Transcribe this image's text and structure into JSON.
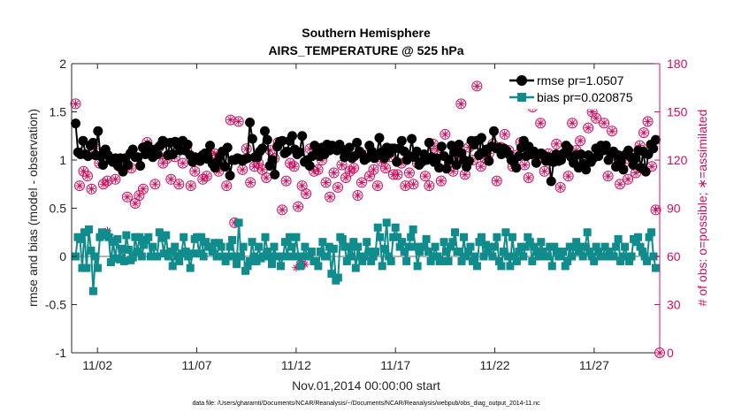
{
  "chart_data": {
    "type": "line",
    "title": "Southern Hemisphere",
    "subtitle": "AIRS_TEMPERATURE @ 525 hPa",
    "xlabel": "Nov.01,2014 00:00:00 start",
    "ylabel_left": "rmse and bias (model - observation)",
    "ylabel_right": "# of obs: o=possible; ∗=assimilated",
    "footnote": "data file: /Users/gharamti/Documents/NCAR/Reanalysis/~/Documents/NCAR/Reanalysis/webpub/obs_diag_output_2014-11.nc",
    "xlim": [
      0.7,
      30.3
    ],
    "x_ticks": [
      {
        "x": 2,
        "label": "11/02"
      },
      {
        "x": 7,
        "label": "11/07"
      },
      {
        "x": 12,
        "label": "11/12"
      },
      {
        "x": 17,
        "label": "11/17"
      },
      {
        "x": 22,
        "label": "11/22"
      },
      {
        "x": 27,
        "label": "11/27"
      }
    ],
    "ylim_left": [
      -1,
      2
    ],
    "yticks_left": [
      "-1",
      "-0.5",
      "0",
      "0.5",
      "1",
      "1.5",
      "2"
    ],
    "ylim_right": [
      0,
      180
    ],
    "yticks_right": [
      "0",
      "30",
      "60",
      "90",
      "120",
      "150",
      "180"
    ],
    "legend_position": "top-right",
    "colors": {
      "rmse": "#000000",
      "bias": "#108c8c",
      "obs": "#cc1060",
      "zero_line": "#b4b4b4",
      "axis": "#262626"
    },
    "series": [
      {
        "name": "rmse pr=1.0507",
        "key": "rmse",
        "axis": "left",
        "values": [
          1.38,
          1.08,
          1.06,
          1.2,
          1.06,
          1.04,
          1.15,
          1.18,
          1.05,
          1.3,
          1.04,
          0.95,
          1.11,
          1.05,
          1.0,
          0.98,
          1.02,
          0.94,
          1.02,
          0.88,
          1.02,
          0.95,
          1.07,
          1.11,
          1.03,
          1.03,
          0.94,
          1.13,
          1.06,
          1.15,
          1.1,
          1.03,
          1.11,
          1.06,
          1.15,
          1.2,
          1.18,
          1.05,
          1.18,
          1.06,
          1.19,
          1.16,
          1.1,
          1.2,
          1.1,
          1.16,
          1.05,
          0.98,
          1.03,
          1.02,
          0.99,
          1.05,
          1.07,
          1.01,
          1.15,
          0.96,
          0.92,
          0.98,
          1.04,
          1.09,
          0.93,
          1.13,
          0.84,
          1.0,
          1.0,
          1.02,
          1.01,
          0.99,
          1.01,
          1.02,
          1.39,
          1.22,
          1.03,
          1.03,
          1.09,
          1.12,
          1.3,
          1.21,
          0.94,
          1.0,
          0.85,
          1.14,
          1.19,
          1.2,
          1.07,
          1.09,
          1.2,
          1.25,
          1.11,
          1.06,
          1.08,
          1.25,
          0.98,
          1.0,
          0.94,
          1.04,
          1.15,
          1.11,
          1.04,
          1.13,
          1.06,
          1.16,
          1.1,
          1.15,
          1.14,
          1.1,
          1.16,
          1.11,
          1.03,
          1.08,
          1.13,
          1.02,
          1.04,
          1.18,
          1.09,
          1.06,
          1.0,
          1.02,
          1.15,
          1.09,
          1.02,
          1.05,
          1.23,
          1.08,
          1.02,
          1.13,
          1.07,
          1.12,
          1.12,
          0.98,
          1.12,
          1.2,
          1.09,
          1.0,
          1.04,
          1.22,
          1.03,
          1.09,
          0.95,
          0.98,
          1.06,
          1.0,
          1.18,
          1.03,
          0.98,
          1.02,
          0.92,
          1.14,
          1.04,
          0.91,
          1.0,
          1.15,
          1.08,
          0.95,
          1.16,
          1.07,
          1.0,
          0.93,
          0.99,
          1.2,
          1.16,
          1.2,
          1.05,
          1.23,
          1.08,
          1.11,
          0.99,
          1.14,
          1.3,
          1.12,
          1.13,
          1.06,
          1.12,
          1.1,
          1.06,
          1.0,
          0.98,
          0.92,
          1.04,
          1.13,
          1.2,
          1.04,
          1.14,
          1.06,
          1.09,
          0.97,
          1.06,
          1.07,
          1.05,
          0.99,
          1.03,
          0.78,
          0.98,
          1.06,
          0.99,
          1.0,
          1.07,
          1.15,
          1.12,
          1.03,
          0.97,
          1.05,
          0.92,
          1.06,
          0.96,
          0.9,
          1.05,
          0.98,
          1.02,
          1.12,
          1.04,
          1.15,
          1.1,
          1.15,
          1.0,
          1.06,
          1.09,
          0.93,
          1.05,
          0.98,
          0.9,
          1.06,
          1.1,
          1.03,
          0.95,
          1.02,
          1.1,
          0.92,
          1.09,
          0.88,
          1.06,
          1.16,
          1.12,
          1.21
        ]
      },
      {
        "name": "bias pr=0.020875",
        "key": "bias",
        "axis": "left",
        "values": [
          0.0,
          0.2,
          0.18,
          -0.12,
          0.25,
          -0.12,
          0.28,
          0.06,
          -0.36,
          0.0,
          -0.12,
          0.2,
          0.25,
          0.22,
          0.24,
          0.2,
          -0.06,
          0.15,
          -0.02,
          0.18,
          -0.03,
          0.08,
          -0.05,
          0.22,
          0.07,
          -0.04,
          -0.01,
          0.2,
          0.05,
          0.2,
          0.0,
          0.12,
          0.17,
          0.2,
          0.0,
          0.1,
          0.0,
          0.0,
          0.25,
          0.19,
          0.03,
          0.22,
          0.0,
          0.05,
          -0.1,
          0.1,
          0.0,
          -0.05,
          0.03,
          0.2,
          0.05,
          0.0,
          -0.12,
          0.03,
          0.18,
          0.2,
          0.03,
          0.2,
          0.0,
          0.15,
          0.1,
          0.1,
          0.05,
          0.14,
          0.0,
          0.14,
          0.1,
          0.0,
          -0.05,
          0.0,
          0.1,
          0.17,
          0.0,
          -0.08,
          0.35,
          0.0,
          0.1,
          -0.15,
          -0.1,
          -0.05,
          0.15,
          0.0,
          -0.05,
          0.1,
          -0.02,
          0.0,
          0.2,
          0.05,
          0.0,
          -0.08,
          0.1,
          0.0,
          0.0,
          -0.1,
          0.0,
          0.15,
          0.0,
          0.2,
          0.1,
          0.0,
          0.2,
          0.0,
          -0.1,
          0.0,
          0.1,
          0.0,
          0.0,
          0.05,
          -0.05,
          -0.05,
          -0.1,
          0.05,
          0.15,
          0.0,
          0.0,
          0.1,
          -0.18,
          0.08,
          -0.25,
          -0.22,
          0.2,
          0.18,
          0.1,
          -0.05,
          0.1,
          0.0,
          0.15,
          -0.12,
          0.1,
          0.0,
          -0.05,
          0.0,
          0.15,
          0.05,
          -0.05,
          0.0,
          0.05,
          0.3,
          0.2,
          -0.1,
          0.08,
          0.35,
          0.0,
          -0.05,
          0.2,
          0.3,
          0.2,
          0.1,
          0.15,
          0.05,
          -0.05,
          0.1,
          0.2,
          0.28,
          0.1,
          -0.1,
          0.05,
          0.1,
          0.1,
          0.18,
          0.05,
          -0.05,
          0.0,
          0.1,
          0.0,
          -0.05,
          -0.05,
          0.15,
          0.05,
          -0.05,
          0.1,
          0.15,
          0.25,
          0.05,
          0.05,
          -0.05,
          0.2,
          0.0,
          0.05,
          0.1,
          -0.05,
          0.0,
          -0.1,
          0.15,
          0.2,
          0.0,
          0.12,
          0.05,
          0.1,
          0.0,
          0.1,
          0.2,
          -0.05,
          -0.1,
          0.05,
          0.25,
          0.0,
          -0.1,
          0.2,
          0.0,
          -0.05,
          0.05,
          0.1,
          0.0,
          0.1,
          0.2,
          0.15,
          -0.05,
          0.1,
          0.05,
          0.0,
          0.15,
          0.05,
          0.0,
          0.0,
          0.1,
          -0.1,
          0.1,
          0.05,
          0.0,
          0.0,
          0.05,
          -0.1,
          -0.05,
          0.1,
          0.0,
          0.1,
          0.15,
          0.05,
          0.1,
          0.0,
          0.1,
          0.25,
          0.05,
          0.0,
          -0.05,
          0.1,
          0.05,
          0.0,
          0.0,
          0.1,
          0.0,
          0.05,
          0.0,
          0.0,
          0.1,
          0.18,
          -0.05,
          0.0,
          0.1,
          0.0,
          -0.05,
          0.0,
          0.18,
          0.15,
          0.2,
          0.1,
          0.05,
          0.0,
          -0.05,
          0.2,
          0.25,
          0.0,
          -0.12
        ]
      },
      {
        "name": "# of obs: o=possible; ∗=assimilated",
        "key": "obs",
        "axis": "right",
        "points": [
          [
            0.9,
            155
          ],
          [
            1.1,
            104
          ],
          [
            1.3,
            113
          ],
          [
            1.5,
            110
          ],
          [
            1.7,
            102
          ],
          [
            1.9,
            127
          ],
          [
            2.1,
            118
          ],
          [
            2.3,
            105
          ],
          [
            2.5,
            107
          ],
          [
            2.7,
            120
          ],
          [
            2.9,
            108
          ],
          [
            3.1,
            116
          ],
          [
            3.3,
            115
          ],
          [
            3.5,
            97
          ],
          [
            3.7,
            115
          ],
          [
            3.9,
            93
          ],
          [
            4.1,
            98
          ],
          [
            4.3,
            102
          ],
          [
            4.5,
            131
          ],
          [
            4.7,
            124
          ],
          [
            4.9,
            105
          ],
          [
            5.1,
            128
          ],
          [
            5.3,
            118
          ],
          [
            5.5,
            121
          ],
          [
            5.7,
            108
          ],
          [
            5.9,
            122
          ],
          [
            6.1,
            105
          ],
          [
            6.3,
            118
          ],
          [
            6.5,
            126
          ],
          [
            6.7,
            104
          ],
          [
            6.9,
            113
          ],
          [
            7.1,
            121
          ],
          [
            7.3,
            108
          ],
          [
            7.5,
            110
          ],
          [
            7.7,
            123
          ],
          [
            7.9,
            124
          ],
          [
            8.1,
            113
          ],
          [
            8.3,
            117
          ],
          [
            8.5,
            104
          ],
          [
            8.7,
            145
          ],
          [
            8.9,
            81
          ],
          [
            9.1,
            144
          ],
          [
            9.3,
            114
          ],
          [
            9.5,
            127
          ],
          [
            9.7,
            106
          ],
          [
            9.9,
            116
          ],
          [
            10.1,
            118
          ],
          [
            10.3,
            114
          ],
          [
            10.5,
            109
          ],
          [
            10.7,
            126
          ],
          [
            10.9,
            121
          ],
          [
            11.1,
            131
          ],
          [
            11.3,
            89
          ],
          [
            11.5,
            107
          ],
          [
            11.7,
            118
          ],
          [
            11.9,
            116
          ],
          [
            12.1,
            91
          ],
          [
            12.3,
            104
          ],
          [
            12.5,
            99
          ],
          [
            12.7,
            127
          ],
          [
            12.9,
            113
          ],
          [
            13.1,
            114
          ],
          [
            13.3,
            120
          ],
          [
            13.5,
            106
          ],
          [
            13.7,
            97
          ],
          [
            13.9,
            112
          ],
          [
            14.1,
            103
          ],
          [
            14.3,
            117
          ],
          [
            14.5,
            109
          ],
          [
            14.7,
            113
          ],
          [
            14.9,
            115
          ],
          [
            15.1,
            98
          ],
          [
            15.3,
            106
          ],
          [
            15.5,
            123
          ],
          [
            15.7,
            110
          ],
          [
            15.9,
            114
          ],
          [
            16.1,
            104
          ],
          [
            16.3,
            119
          ],
          [
            16.5,
            115
          ],
          [
            16.7,
            122
          ],
          [
            16.9,
            111
          ],
          [
            17.1,
            111
          ],
          [
            17.3,
            118
          ],
          [
            17.5,
            104
          ],
          [
            17.7,
            112
          ],
          [
            17.9,
            105
          ],
          [
            18.1,
            118
          ],
          [
            18.3,
            121
          ],
          [
            18.5,
            110
          ],
          [
            18.7,
            104
          ],
          [
            18.9,
            130
          ],
          [
            19.1,
            126
          ],
          [
            19.3,
            107
          ],
          [
            19.5,
            136
          ],
          [
            19.7,
            118
          ],
          [
            19.9,
            113
          ],
          [
            20.1,
            121
          ],
          [
            20.3,
            155
          ],
          [
            20.5,
            111
          ],
          [
            20.7,
            128
          ],
          [
            20.9,
            120
          ],
          [
            21.1,
            166
          ],
          [
            21.3,
            116
          ],
          [
            21.5,
            121
          ],
          [
            21.7,
            124
          ],
          [
            21.9,
            130
          ],
          [
            22.1,
            107
          ],
          [
            22.3,
            128
          ],
          [
            22.5,
            136
          ],
          [
            22.7,
            126
          ],
          [
            22.9,
            116
          ],
          [
            23.1,
            123
          ],
          [
            23.3,
            131
          ],
          [
            23.5,
            117
          ],
          [
            23.7,
            109
          ],
          [
            23.9,
            153
          ],
          [
            24.1,
            119
          ],
          [
            24.3,
            143
          ],
          [
            24.5,
            113
          ],
          [
            24.7,
            124
          ],
          [
            24.9,
            120
          ],
          [
            25.1,
            130
          ],
          [
            25.3,
            103
          ],
          [
            25.5,
            124
          ],
          [
            25.7,
            110
          ],
          [
            25.9,
            143
          ],
          [
            26.1,
            126
          ],
          [
            26.3,
            132
          ],
          [
            26.5,
            119
          ],
          [
            26.7,
            140
          ],
          [
            26.9,
            150
          ],
          [
            27.1,
            146
          ],
          [
            27.3,
            126
          ],
          [
            27.5,
            143
          ],
          [
            27.7,
            110
          ],
          [
            27.9,
            138
          ],
          [
            28.1,
            120
          ],
          [
            28.3,
            105
          ],
          [
            28.5,
            118
          ],
          [
            28.7,
            108
          ],
          [
            28.9,
            123
          ],
          [
            29.1,
            112
          ],
          [
            29.3,
            129
          ],
          [
            29.5,
            137
          ],
          [
            29.7,
            144
          ],
          [
            29.9,
            116
          ],
          [
            30.1,
            89
          ],
          [
            30.3,
            0
          ]
        ],
        "assimilated_only": [
          [
            12.0,
            53
          ],
          [
            12.15,
            58
          ],
          [
            12.3,
            57
          ],
          [
            12.45,
            55
          ],
          [
            2.5,
            76
          ],
          [
            2.65,
            72
          ]
        ]
      }
    ]
  }
}
